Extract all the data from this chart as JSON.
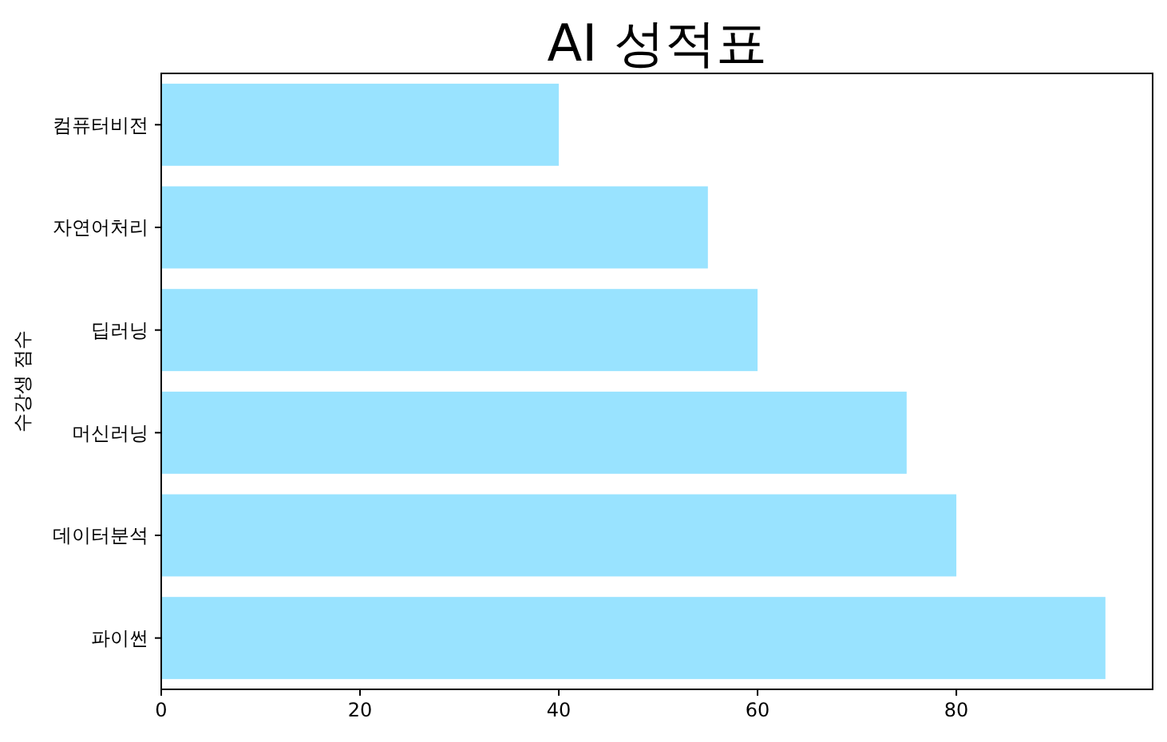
{
  "chart_data": {
    "type": "bar",
    "orientation": "horizontal",
    "title": "AI 성적표",
    "ylabel": "수강생 점수",
    "categories": [
      "컴퓨터비전",
      "자연어처리",
      "딥러닝",
      "머신러닝",
      "데이터분석",
      "파이썬"
    ],
    "values": [
      40,
      55,
      60,
      75,
      80,
      95
    ],
    "color": "#99e3ff",
    "xlim": [
      0,
      99.75
    ],
    "xticks": [
      0,
      20,
      40,
      60,
      80
    ],
    "grid": false
  }
}
